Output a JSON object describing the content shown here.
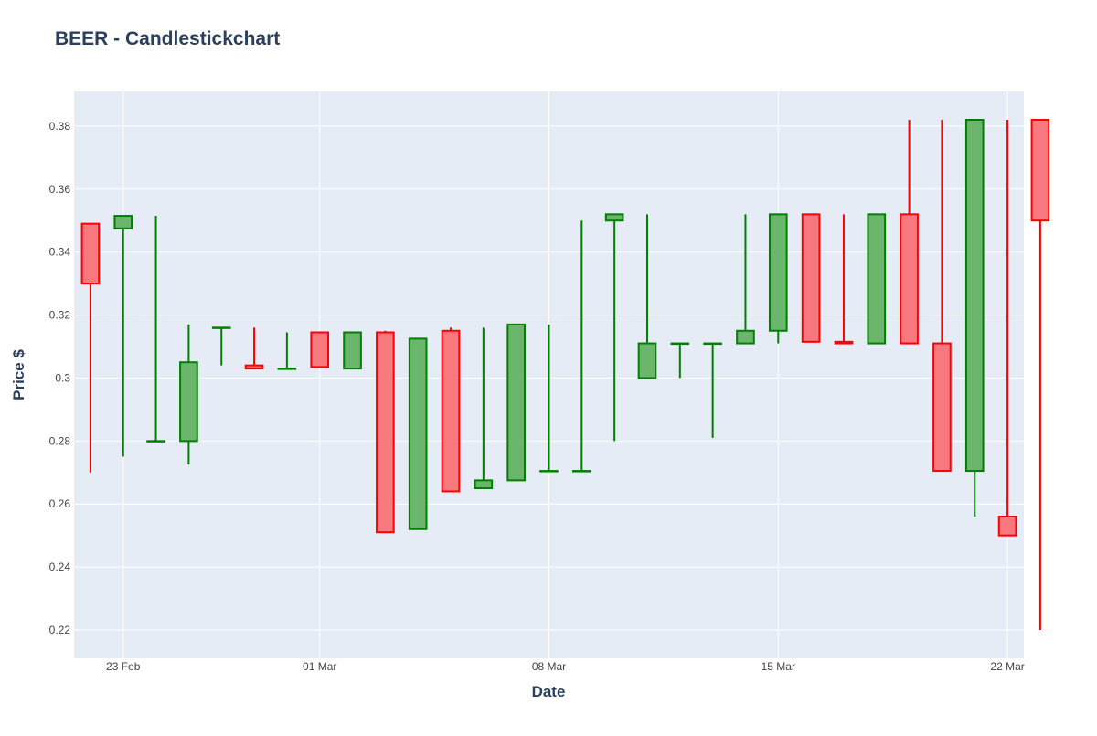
{
  "chart_data": {
    "type": "candlestick",
    "title": "BEER - Candlestickchart",
    "xlabel": "Date",
    "ylabel": "Price $",
    "ylim": [
      0.211,
      0.391
    ],
    "xlim": [
      "2021-02-21T12:00",
      "2021-03-22T12:00"
    ],
    "grid": true,
    "legend": "none",
    "x_ticks": [
      {
        "date": "2021-02-23",
        "label": "23 Feb"
      },
      {
        "date": "2021-03-01",
        "label": "01 Mar"
      },
      {
        "date": "2021-03-08",
        "label": "08 Mar"
      },
      {
        "date": "2021-03-15",
        "label": "15 Mar"
      },
      {
        "date": "2021-03-22",
        "label": "22 Mar"
      }
    ],
    "y_ticks": [
      0.22,
      0.24,
      0.26,
      0.28,
      0.3,
      0.32,
      0.34,
      0.36,
      0.38
    ],
    "y_tick_labels": [
      "0.22",
      "0.24",
      "0.26",
      "0.28",
      "0.3",
      "0.32",
      "0.34",
      "0.36",
      "0.38"
    ],
    "colors": {
      "increasing_line": "#008000",
      "increasing_fill": "#6cb56c",
      "decreasing_line": "#ff0000",
      "decreasing_fill": "#f87880",
      "plot_bg": "#e5ecf6",
      "grid": "#ffffff"
    },
    "candles": [
      {
        "date": "2021-02-22",
        "open": 0.349,
        "high": 0.349,
        "low": 0.27,
        "close": 0.33
      },
      {
        "date": "2021-02-23",
        "open": 0.3475,
        "high": 0.3515,
        "low": 0.275,
        "close": 0.3515
      },
      {
        "date": "2021-02-24",
        "open": 0.28,
        "high": 0.3515,
        "low": 0.28,
        "close": 0.28
      },
      {
        "date": "2021-02-25",
        "open": 0.28,
        "high": 0.317,
        "low": 0.2725,
        "close": 0.305
      },
      {
        "date": "2021-02-26",
        "open": 0.316,
        "high": 0.316,
        "low": 0.304,
        "close": 0.316
      },
      {
        "date": "2021-02-27",
        "open": 0.304,
        "high": 0.316,
        "low": 0.303,
        "close": 0.303
      },
      {
        "date": "2021-02-28",
        "open": 0.303,
        "high": 0.3145,
        "low": 0.303,
        "close": 0.303
      },
      {
        "date": "2021-03-01",
        "open": 0.3145,
        "high": 0.3145,
        "low": 0.3035,
        "close": 0.3035
      },
      {
        "date": "2021-03-02",
        "open": 0.303,
        "high": 0.3145,
        "low": 0.303,
        "close": 0.3145
      },
      {
        "date": "2021-03-03",
        "open": 0.3145,
        "high": 0.315,
        "low": 0.251,
        "close": 0.251
      },
      {
        "date": "2021-03-04",
        "open": 0.252,
        "high": 0.3125,
        "low": 0.252,
        "close": 0.3125
      },
      {
        "date": "2021-03-05",
        "open": 0.315,
        "high": 0.316,
        "low": 0.264,
        "close": 0.264
      },
      {
        "date": "2021-03-06",
        "open": 0.265,
        "high": 0.316,
        "low": 0.265,
        "close": 0.2675
      },
      {
        "date": "2021-03-07",
        "open": 0.2675,
        "high": 0.317,
        "low": 0.2675,
        "close": 0.317
      },
      {
        "date": "2021-03-08",
        "open": 0.2705,
        "high": 0.317,
        "low": 0.2705,
        "close": 0.2705
      },
      {
        "date": "2021-03-09",
        "open": 0.2705,
        "high": 0.35,
        "low": 0.2705,
        "close": 0.2705
      },
      {
        "date": "2021-03-10",
        "open": 0.35,
        "high": 0.352,
        "low": 0.28,
        "close": 0.352
      },
      {
        "date": "2021-03-11",
        "open": 0.3,
        "high": 0.352,
        "low": 0.3,
        "close": 0.311
      },
      {
        "date": "2021-03-12",
        "open": 0.311,
        "high": 0.311,
        "low": 0.3,
        "close": 0.311
      },
      {
        "date": "2021-03-13",
        "open": 0.311,
        "high": 0.311,
        "low": 0.281,
        "close": 0.311
      },
      {
        "date": "2021-03-14",
        "open": 0.311,
        "high": 0.352,
        "low": 0.311,
        "close": 0.315
      },
      {
        "date": "2021-03-15",
        "open": 0.315,
        "high": 0.352,
        "low": 0.311,
        "close": 0.352
      },
      {
        "date": "2021-03-16",
        "open": 0.352,
        "high": 0.352,
        "low": 0.3115,
        "close": 0.3115
      },
      {
        "date": "2021-03-17",
        "open": 0.3115,
        "high": 0.352,
        "low": 0.311,
        "close": 0.311
      },
      {
        "date": "2021-03-18",
        "open": 0.311,
        "high": 0.352,
        "low": 0.311,
        "close": 0.352
      },
      {
        "date": "2021-03-19",
        "open": 0.352,
        "high": 0.382,
        "low": 0.311,
        "close": 0.311
      },
      {
        "date": "2021-03-20",
        "open": 0.311,
        "high": 0.382,
        "low": 0.2705,
        "close": 0.2705
      },
      {
        "date": "2021-03-21",
        "open": 0.2705,
        "high": 0.382,
        "low": 0.256,
        "close": 0.382
      },
      {
        "date": "2021-03-22",
        "open": 0.256,
        "high": 0.382,
        "low": 0.25,
        "close": 0.25
      },
      {
        "date": "2021-03-23",
        "open": 0.382,
        "high": 0.382,
        "low": 0.22,
        "close": 0.35
      }
    ]
  }
}
